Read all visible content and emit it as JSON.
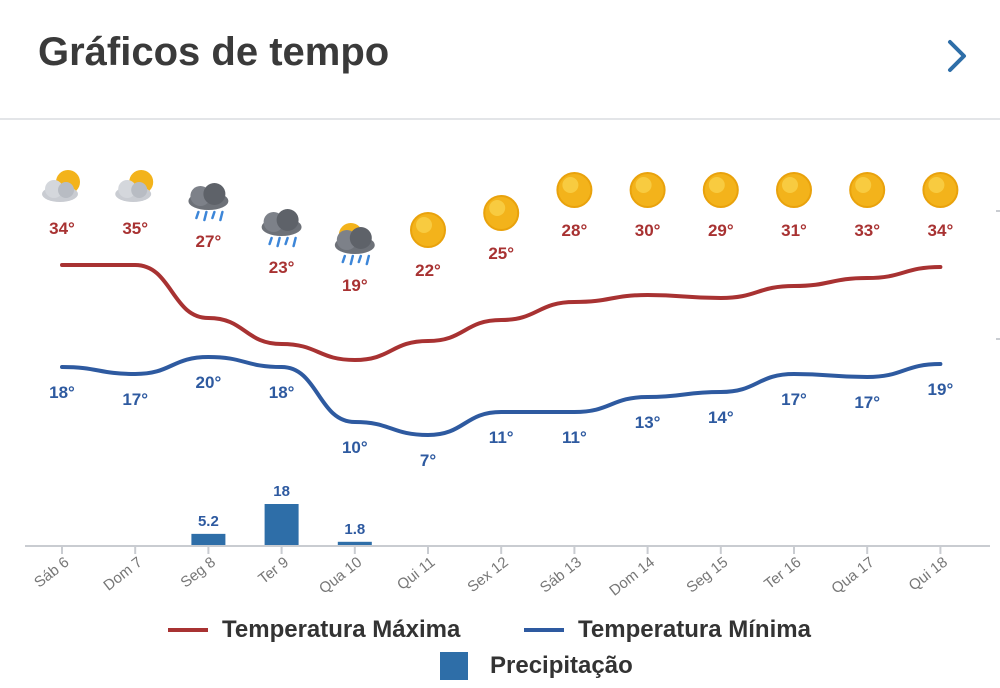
{
  "header": {
    "title": "Gráficos de tempo",
    "nav_icon": "chevron-right-icon"
  },
  "colors": {
    "max": "#a83232",
    "min": "#2e5aa0",
    "precip": "#2e6ea8",
    "axis": "#c9ccd1",
    "tick_label": "#777777",
    "chevron": "#2e6ea8"
  },
  "chart_data": {
    "type": "line",
    "categories": [
      "Sáb 6",
      "Dom 7",
      "Seg 8",
      "Ter 9",
      "Qua 10",
      "Qui 11",
      "Sex 12",
      "Sáb 13",
      "Dom 14",
      "Seg 15",
      "Ter 16",
      "Qua 17",
      "Qui 18"
    ],
    "icons": [
      "partly-sunny-icon",
      "partly-sunny-icon",
      "rain-cloud-icon",
      "rain-cloud-icon",
      "sun-rain-cloud-icon",
      "sun-icon",
      "sun-icon",
      "sun-icon",
      "sun-icon",
      "sun-icon",
      "sun-icon",
      "sun-icon",
      "sun-icon"
    ],
    "series": [
      {
        "name": "Temperatura Máxima",
        "values": [
          34,
          35,
          27,
          23,
          19,
          22,
          25,
          28,
          30,
          29,
          31,
          33,
          34
        ],
        "labels": [
          "34°",
          "35°",
          "27°",
          "23°",
          "19°",
          "22°",
          "25°",
          "28°",
          "30°",
          "29°",
          "31°",
          "33°",
          "34°"
        ]
      },
      {
        "name": "Temperatura Mínima",
        "values": [
          18,
          17,
          20,
          18,
          10,
          7,
          11,
          11,
          13,
          14,
          17,
          17,
          19
        ],
        "labels": [
          "18°",
          "17°",
          "20°",
          "18°",
          "10°",
          "7°",
          "11°",
          "11°",
          "13°",
          "14°",
          "17°",
          "17°",
          "19°"
        ]
      },
      {
        "name": "Precipitação",
        "type": "bar",
        "values": [
          0,
          0,
          5.2,
          18,
          1.8,
          0,
          0,
          0,
          0,
          0,
          0,
          0,
          0
        ],
        "labels": [
          "",
          "",
          "5.2",
          "18",
          "1.8",
          "",
          "",
          "",
          "",
          "",
          "",
          "",
          ""
        ]
      }
    ],
    "legend": "bottom",
    "grid": false
  }
}
